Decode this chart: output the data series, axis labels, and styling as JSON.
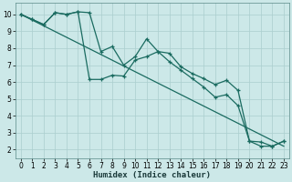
{
  "xlabel": "Humidex (Indice chaleur)",
  "bg_color": "#cce8e8",
  "grid_color": "#aacece",
  "line_color": "#1a6b60",
  "xlim": [
    -0.5,
    23.5
  ],
  "ylim": [
    1.5,
    10.7
  ],
  "xticks": [
    0,
    1,
    2,
    3,
    4,
    5,
    6,
    7,
    8,
    9,
    10,
    11,
    12,
    13,
    14,
    15,
    16,
    17,
    18,
    19,
    20,
    21,
    22,
    23
  ],
  "yticks": [
    2,
    3,
    4,
    5,
    6,
    7,
    8,
    9,
    10
  ],
  "series1_x": [
    0,
    1,
    2,
    3,
    4,
    5,
    6,
    7,
    8,
    9,
    10,
    11,
    12,
    13,
    14,
    15,
    16,
    17,
    18,
    19,
    20,
    21,
    22,
    23
  ],
  "series1_y": [
    10.0,
    9.7,
    9.4,
    10.1,
    10.0,
    10.15,
    10.1,
    7.8,
    8.1,
    7.0,
    7.5,
    8.55,
    7.8,
    7.7,
    6.9,
    6.5,
    6.2,
    5.85,
    6.1,
    5.5,
    2.5,
    2.45,
    2.2,
    2.5
  ],
  "series2_x": [
    0,
    1,
    2,
    3,
    4,
    5,
    6,
    7,
    8,
    9,
    10,
    11,
    12,
    13,
    14,
    15,
    16,
    17,
    18,
    19,
    20,
    21,
    22,
    23
  ],
  "series2_y": [
    10.0,
    9.7,
    9.4,
    10.1,
    10.0,
    10.15,
    6.15,
    6.15,
    6.4,
    6.35,
    7.3,
    7.5,
    7.8,
    7.2,
    6.7,
    6.2,
    5.7,
    5.1,
    5.25,
    4.6,
    2.5,
    2.2,
    2.2,
    2.5
  ],
  "series3_x": [
    0,
    23
  ],
  "series3_y": [
    10.0,
    2.2
  ],
  "xlabel_fontsize": 6.5,
  "tick_fontsize": 5.5
}
